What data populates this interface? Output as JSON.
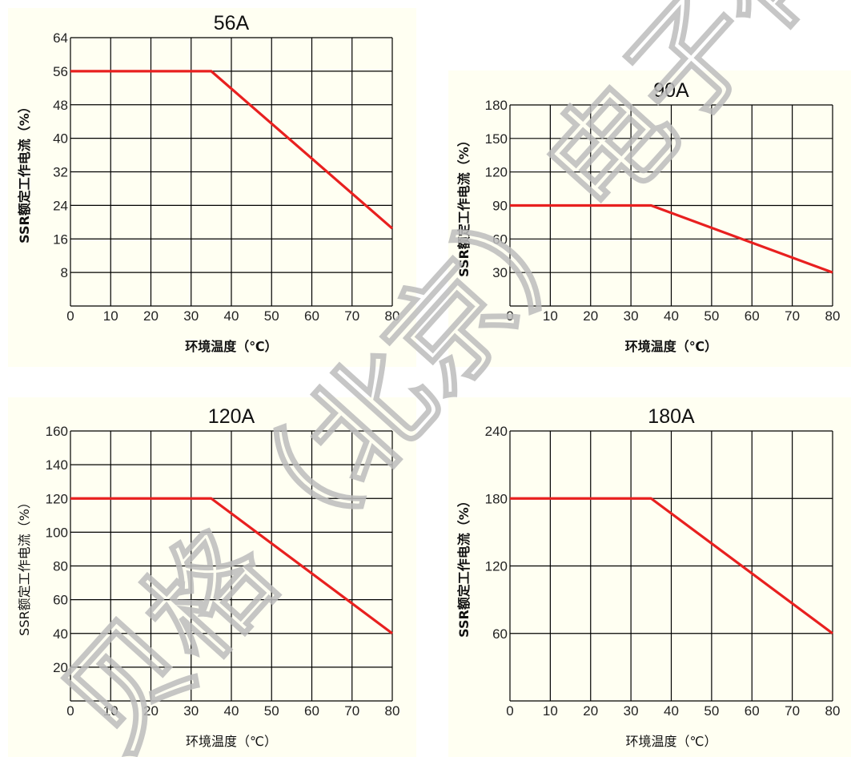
{
  "chart_data": [
    {
      "type": "line",
      "title": "56A",
      "xlabel": "环境温度（℃）",
      "ylabel": "SSR额定工作电流（%）",
      "xlim": [
        0,
        80
      ],
      "ylim": [
        0,
        64
      ],
      "x_ticks": [
        0,
        10,
        20,
        30,
        40,
        50,
        60,
        70,
        80
      ],
      "y_ticks": [
        8,
        16,
        24,
        32,
        40,
        48,
        56,
        64
      ],
      "origin_label": "0",
      "grid": true,
      "series": [
        {
          "x": [
            0,
            35,
            80
          ],
          "y": [
            56,
            56,
            18.5
          ],
          "color": "#e8201f"
        }
      ]
    },
    {
      "type": "line",
      "title": "90A",
      "xlabel": "环境温度（℃）",
      "ylabel": "SSR额定工作电流（%）",
      "xlim": [
        0,
        80
      ],
      "ylim": [
        0,
        180
      ],
      "x_ticks": [
        0,
        10,
        20,
        30,
        40,
        50,
        60,
        70,
        80
      ],
      "y_ticks": [
        30,
        60,
        90,
        120,
        150,
        180
      ],
      "origin_label": "0",
      "grid": true,
      "series": [
        {
          "x": [
            0,
            35,
            80
          ],
          "y": [
            90,
            90,
            30
          ],
          "color": "#e8201f"
        }
      ]
    },
    {
      "type": "line",
      "title": "120A",
      "xlabel": "环境温度（℃）",
      "ylabel": "SSR额定工作电流（%）",
      "xlim": [
        0,
        80
      ],
      "ylim": [
        0,
        160
      ],
      "x_ticks": [
        0,
        10,
        20,
        30,
        40,
        50,
        60,
        70,
        80
      ],
      "y_ticks": [
        20,
        40,
        60,
        80,
        100,
        120,
        140,
        160
      ],
      "origin_label": "0",
      "grid": true,
      "series": [
        {
          "x": [
            0,
            35,
            80
          ],
          "y": [
            120,
            120,
            40
          ],
          "color": "#e8201f"
        }
      ]
    },
    {
      "type": "line",
      "title": "180A",
      "xlabel": "环境温度（℃）",
      "ylabel": "SSR额定工作电流（%）",
      "xlim": [
        0,
        80
      ],
      "ylim": [
        0,
        240
      ],
      "x_ticks": [
        0,
        10,
        20,
        30,
        40,
        50,
        60,
        70,
        80
      ],
      "y_ticks": [
        60,
        120,
        180,
        240
      ],
      "origin_label": "0",
      "grid": true,
      "series": [
        {
          "x": [
            0,
            35,
            80
          ],
          "y": [
            180,
            180,
            60
          ],
          "color": "#e8201f"
        }
      ]
    }
  ],
  "watermark": "贝格（北京）电子有限公司"
}
